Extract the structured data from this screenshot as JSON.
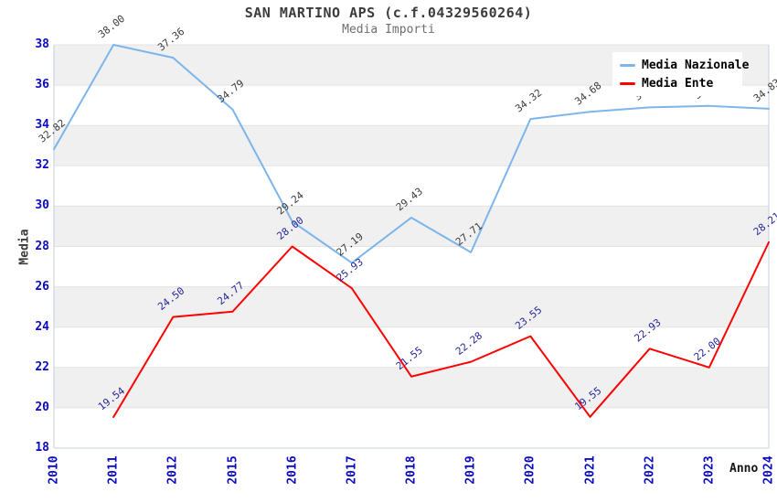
{
  "chart_data": {
    "type": "line",
    "title": "SAN MARTINO APS (c.f.04329560264)",
    "subtitle": "Media Importi",
    "xlabel": "Anno",
    "ylabel": "Media",
    "categories": [
      "2010",
      "2011",
      "2012",
      "2015",
      "2016",
      "2017",
      "2018",
      "2019",
      "2020",
      "2021",
      "2022",
      "2023",
      "2024"
    ],
    "ylim": [
      18,
      38
    ],
    "ytick_step": 2,
    "grid": "alternating-horizontal-bands",
    "legend_position": "top-right-inside",
    "series": [
      {
        "name": "Media Nazionale",
        "color": "#7cb5ec",
        "label_color": "#3c3c3c",
        "values": [
          32.82,
          38.0,
          37.36,
          34.79,
          29.24,
          27.19,
          29.43,
          27.71,
          34.32,
          34.68,
          34.9,
          34.97,
          34.83
        ],
        "labels": [
          "32.82",
          "38.00",
          "37.36",
          "34.79",
          "29.24",
          "27.19",
          "29.43",
          "27.71",
          "34.32",
          "34.68",
          "34.90",
          "34.97",
          "34.83"
        ]
      },
      {
        "name": "Media Ente",
        "color": "#ff0000",
        "label_color": "#26269c",
        "values": [
          null,
          19.54,
          24.5,
          24.77,
          28.0,
          25.93,
          21.55,
          22.28,
          23.55,
          19.55,
          22.93,
          22.0,
          28.21
        ],
        "labels": [
          null,
          "19.54",
          "24.50",
          "24.77",
          "28.00",
          "25.93",
          "21.55",
          "22.28",
          "23.55",
          "19.55",
          "22.93",
          "22.00",
          "28.21"
        ]
      }
    ],
    "colors": {
      "tick_label": "#0a0ac6",
      "band": "#f0f0f0",
      "gridline": "#e3e3e3",
      "axis_line": "#c6cfdc",
      "title": "#3c3c3c",
      "subtitle": "#6e6e6e",
      "legend_text": "#000000",
      "background": "#ffffff"
    }
  }
}
